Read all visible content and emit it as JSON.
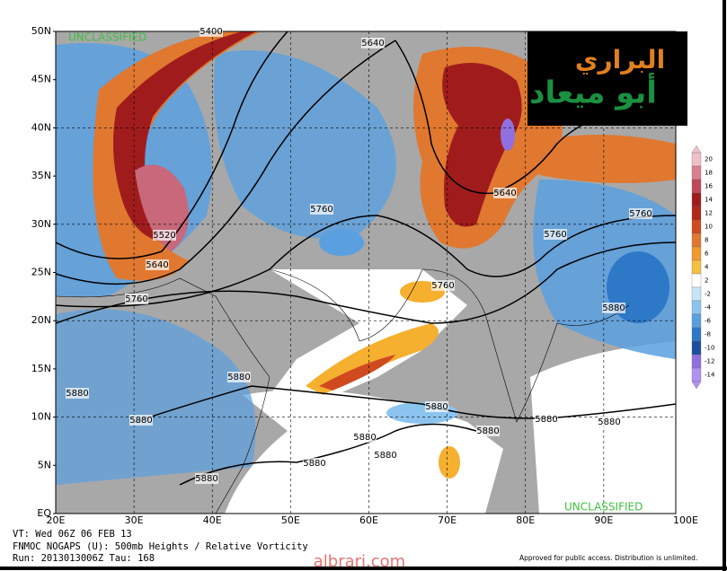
{
  "map": {
    "classification_top": "UNCLASSIFIED",
    "classification_bottom": "UNCLASSIFIED",
    "lat_labels": [
      "50N",
      "45N",
      "40N",
      "35N",
      "30N",
      "25N",
      "20N",
      "15N",
      "10N",
      "5N",
      "EQ"
    ],
    "lon_labels": [
      "20E",
      "30E",
      "40E",
      "50E",
      "60E",
      "70E",
      "80E",
      "90E",
      "100E"
    ],
    "contour_labels": [
      "5400",
      "5640",
      "5520",
      "5640",
      "5760",
      "5760",
      "5640",
      "5760",
      "5760",
      "5760",
      "5880",
      "5880",
      "5880",
      "5880",
      "5880",
      "5880",
      "5880",
      "5880",
      "5880",
      "5880",
      "5880",
      "5880"
    ],
    "colorbar": [
      20,
      18,
      16,
      14,
      12,
      10,
      8,
      6,
      4,
      2,
      -2,
      -4,
      -6,
      -8,
      -10,
      -12,
      -14
    ]
  },
  "footer": {
    "valid_time": "VT: Wed 06Z 06 FEB 13",
    "product": "FNMOC NOGAPS (U): 500mb Heights / Relative Vorticity",
    "run": "Run: 2013013006Z Tau: 168",
    "approval": "Approved for public access. Distribution is unlimited.",
    "website": "albrari.com"
  },
  "logo": {
    "line1": "البراري",
    "line2": "أبو ميعاد"
  }
}
